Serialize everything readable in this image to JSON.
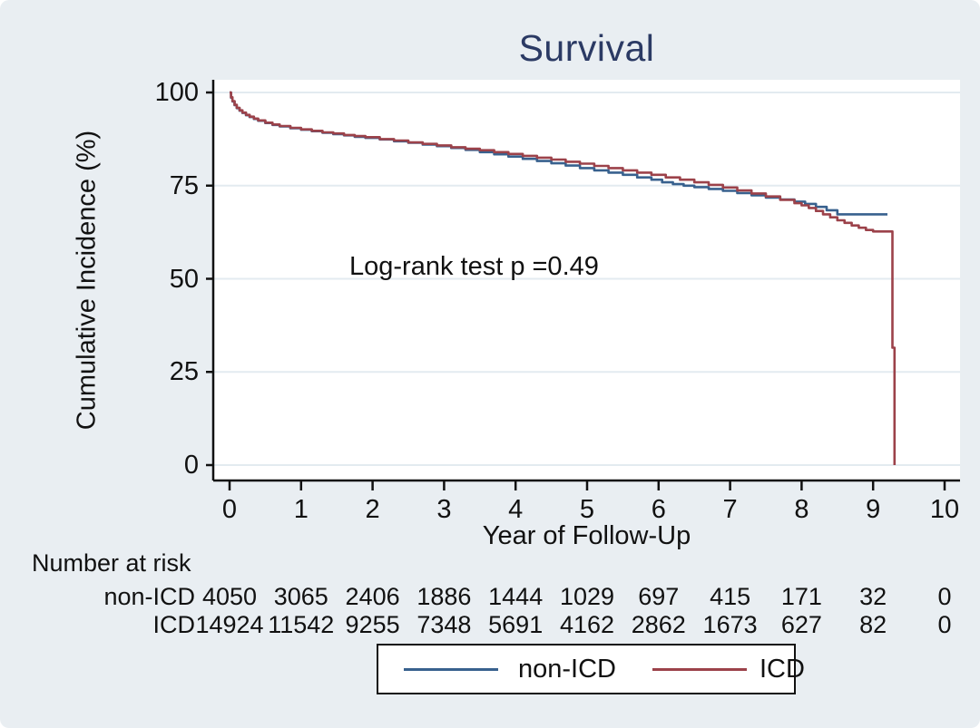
{
  "colors": {
    "background": "#e9eef2",
    "plot_background": "#ffffff",
    "gridline": "#e3ebf0",
    "axis": "#111111",
    "title": "#2b3a64",
    "non_icd_line": "#38618e",
    "icd_line": "#9c424a"
  },
  "chart": {
    "title": "Survival",
    "ylabel": "Cumulative Incidence (%)",
    "xlabel": "Year of Follow-Up",
    "annotation": "Log-rank test p =0.49"
  },
  "risk_table": {
    "heading": "Number at risk",
    "rows": [
      {
        "label": "non-ICD",
        "counts": [
          "4050",
          "3065",
          "2406",
          "1886",
          "1444",
          "1029",
          "697",
          "415",
          "171",
          "32",
          "0"
        ]
      },
      {
        "label": "ICD",
        "counts": [
          "14924",
          "11542",
          "9255",
          "7348",
          "5691",
          "4162",
          "2862",
          "1673",
          "627",
          "82",
          "0"
        ]
      }
    ]
  },
  "legend": {
    "entries": [
      {
        "label": "non-ICD",
        "color": "#38618e"
      },
      {
        "label": "ICD",
        "color": "#9c424a"
      }
    ]
  },
  "chart_data": {
    "type": "line",
    "subtype": "kaplan-meier-step",
    "title": "Survival",
    "xlabel": "Year of Follow-Up",
    "ylabel": "Cumulative Incidence (%)",
    "annotation": "Log-rank test p =0.49",
    "xlim": [
      0,
      10
    ],
    "ylim": [
      0,
      100
    ],
    "x_ticks": [
      0,
      1,
      2,
      3,
      4,
      5,
      6,
      7,
      8,
      9,
      10
    ],
    "y_ticks": [
      0,
      25,
      50,
      75,
      100
    ],
    "grid": true,
    "legend_position": "bottom",
    "series": [
      {
        "name": "non-ICD",
        "color": "#38618e",
        "points": [
          [
            0,
            100
          ],
          [
            0.02,
            98.6
          ],
          [
            0.04,
            97.6
          ],
          [
            0.07,
            96.6
          ],
          [
            0.1,
            95.8
          ],
          [
            0.14,
            95.1
          ],
          [
            0.18,
            94.5
          ],
          [
            0.23,
            93.9
          ],
          [
            0.28,
            93.4
          ],
          [
            0.34,
            92.9
          ],
          [
            0.4,
            92.4
          ],
          [
            0.5,
            91.8
          ],
          [
            0.6,
            91.3
          ],
          [
            0.7,
            90.9
          ],
          [
            0.85,
            90.4
          ],
          [
            1.0,
            90.0
          ],
          [
            1.15,
            89.6
          ],
          [
            1.3,
            89.2
          ],
          [
            1.45,
            88.8
          ],
          [
            1.6,
            88.5
          ],
          [
            1.75,
            88.1
          ],
          [
            1.9,
            87.8
          ],
          [
            2.1,
            87.4
          ],
          [
            2.3,
            86.9
          ],
          [
            2.5,
            86.5
          ],
          [
            2.7,
            86.0
          ],
          [
            2.9,
            85.6
          ],
          [
            3.1,
            85.1
          ],
          [
            3.3,
            84.6
          ],
          [
            3.5,
            84.0
          ],
          [
            3.7,
            83.4
          ],
          [
            3.9,
            82.8
          ],
          [
            4.1,
            82.2
          ],
          [
            4.3,
            81.6
          ],
          [
            4.5,
            81.0
          ],
          [
            4.7,
            80.4
          ],
          [
            4.9,
            79.7
          ],
          [
            5.1,
            79.1
          ],
          [
            5.3,
            78.5
          ],
          [
            5.5,
            77.9
          ],
          [
            5.7,
            77.2
          ],
          [
            5.9,
            76.6
          ],
          [
            6.05,
            75.9
          ],
          [
            6.2,
            75.4
          ],
          [
            6.35,
            75.0
          ],
          [
            6.5,
            74.6
          ],
          [
            6.7,
            74.1
          ],
          [
            6.9,
            73.6
          ],
          [
            7.1,
            73.0
          ],
          [
            7.3,
            72.4
          ],
          [
            7.5,
            71.8
          ],
          [
            7.7,
            71.3
          ],
          [
            7.9,
            70.7
          ],
          [
            8.05,
            70.1
          ],
          [
            8.2,
            69.3
          ],
          [
            8.35,
            68.4
          ],
          [
            8.5,
            67.3
          ],
          [
            9.2,
            67.3
          ]
        ]
      },
      {
        "name": "ICD",
        "color": "#9c424a",
        "points": [
          [
            0,
            100
          ],
          [
            0.02,
            98.7
          ],
          [
            0.04,
            97.7
          ],
          [
            0.07,
            96.7
          ],
          [
            0.1,
            95.9
          ],
          [
            0.14,
            95.2
          ],
          [
            0.18,
            94.6
          ],
          [
            0.23,
            94.0
          ],
          [
            0.28,
            93.5
          ],
          [
            0.34,
            93.0
          ],
          [
            0.4,
            92.5
          ],
          [
            0.5,
            91.9
          ],
          [
            0.6,
            91.4
          ],
          [
            0.7,
            91.0
          ],
          [
            0.85,
            90.5
          ],
          [
            1.0,
            90.1
          ],
          [
            1.15,
            89.7
          ],
          [
            1.3,
            89.3
          ],
          [
            1.45,
            89.0
          ],
          [
            1.6,
            88.6
          ],
          [
            1.75,
            88.3
          ],
          [
            1.9,
            88.0
          ],
          [
            2.1,
            87.5
          ],
          [
            2.3,
            87.1
          ],
          [
            2.5,
            86.6
          ],
          [
            2.7,
            86.2
          ],
          [
            2.9,
            85.8
          ],
          [
            3.1,
            85.3
          ],
          [
            3.3,
            84.9
          ],
          [
            3.5,
            84.5
          ],
          [
            3.7,
            84.0
          ],
          [
            3.9,
            83.5
          ],
          [
            4.1,
            83.0
          ],
          [
            4.3,
            82.5
          ],
          [
            4.5,
            82.0
          ],
          [
            4.7,
            81.4
          ],
          [
            4.9,
            80.9
          ],
          [
            5.1,
            80.3
          ],
          [
            5.3,
            79.7
          ],
          [
            5.5,
            79.1
          ],
          [
            5.7,
            78.5
          ],
          [
            5.9,
            77.9
          ],
          [
            6.1,
            77.2
          ],
          [
            6.3,
            76.6
          ],
          [
            6.5,
            75.9
          ],
          [
            6.7,
            75.2
          ],
          [
            6.9,
            74.5
          ],
          [
            7.1,
            73.7
          ],
          [
            7.3,
            72.9
          ],
          [
            7.5,
            72.1
          ],
          [
            7.7,
            71.2
          ],
          [
            7.9,
            70.3
          ],
          [
            8.0,
            69.7
          ],
          [
            8.1,
            69.0
          ],
          [
            8.2,
            68.2
          ],
          [
            8.3,
            67.3
          ],
          [
            8.4,
            66.5
          ],
          [
            8.5,
            65.7
          ],
          [
            8.6,
            65.0
          ],
          [
            8.7,
            64.3
          ],
          [
            8.8,
            63.7
          ],
          [
            8.9,
            63.1
          ],
          [
            9.0,
            62.7
          ],
          [
            9.27,
            62.7
          ],
          [
            9.27,
            31.5
          ],
          [
            9.3,
            31.5
          ],
          [
            9.3,
            0
          ]
        ]
      }
    ],
    "number_at_risk": {
      "heading": "Number at risk",
      "time_points": [
        0,
        1,
        2,
        3,
        4,
        5,
        6,
        7,
        8,
        9,
        10
      ],
      "rows": [
        {
          "name": "non-ICD",
          "counts": [
            4050,
            3065,
            2406,
            1886,
            1444,
            1029,
            697,
            415,
            171,
            32,
            0
          ]
        },
        {
          "name": "ICD",
          "counts": [
            14924,
            11542,
            9255,
            7348,
            5691,
            4162,
            2862,
            1673,
            627,
            82,
            0
          ]
        }
      ]
    }
  }
}
